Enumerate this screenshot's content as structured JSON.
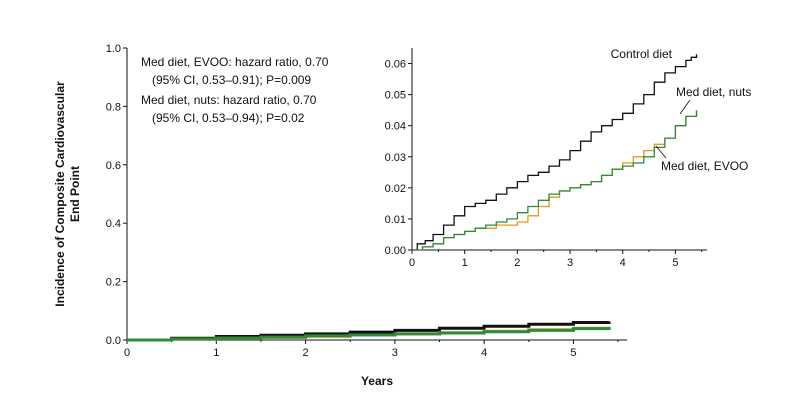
{
  "chart_data": [
    {
      "type": "line",
      "panel": "main",
      "xlabel": "Years",
      "ylabel_lines": [
        "Incidence of Composite Cardiovascular",
        "End Point"
      ],
      "xlim": [
        0,
        5.6
      ],
      "ylim": [
        0,
        1.0
      ],
      "xticks": [
        "0",
        "1",
        "2",
        "3",
        "4",
        "5"
      ],
      "yticks": [
        "0.0",
        "0.2",
        "0.4",
        "0.6",
        "0.8",
        "1.0"
      ],
      "annotations": [
        "Med diet, EVOO: hazard ratio, 0.70",
        "(95% CI, 0.53–0.91); P=0.009",
        "Med diet, nuts: hazard ratio, 0.70",
        "(95% CI, 0.53–0.94);  P=0.02"
      ],
      "series": [
        {
          "color": "#111111",
          "x": [
            0,
            0.5,
            1.0,
            1.5,
            2.0,
            2.5,
            3.0,
            3.5,
            4.0,
            4.5,
            5.0,
            5.4
          ],
          "y": [
            0,
            0.006,
            0.012,
            0.016,
            0.021,
            0.027,
            0.033,
            0.04,
            0.047,
            0.054,
            0.06,
            0.063
          ]
        },
        {
          "color": "#e8971c",
          "x": [
            0,
            0.5,
            1.0,
            1.5,
            2.0,
            2.5,
            3.0,
            3.5,
            4.0,
            4.5,
            5.0,
            5.4
          ],
          "y": [
            0,
            0.003,
            0.006,
            0.009,
            0.013,
            0.017,
            0.021,
            0.025,
            0.03,
            0.035,
            0.04,
            0.045
          ]
        },
        {
          "color": "#2e8b3c",
          "x": [
            0,
            0.5,
            1.0,
            1.5,
            2.0,
            2.5,
            3.0,
            3.5,
            4.0,
            4.5,
            5.0,
            5.4
          ],
          "y": [
            0,
            0.003,
            0.006,
            0.01,
            0.014,
            0.017,
            0.021,
            0.024,
            0.028,
            0.033,
            0.039,
            0.045
          ]
        }
      ]
    },
    {
      "type": "line",
      "panel": "inset",
      "xlim": [
        0,
        5.6
      ],
      "ylim": [
        0,
        0.065
      ],
      "xticks": [
        "0",
        "1",
        "2",
        "3",
        "4",
        "5"
      ],
      "yticks": [
        "0.00",
        "0.01",
        "0.02",
        "0.03",
        "0.04",
        "0.05",
        "0.06"
      ],
      "series": [
        {
          "name": "Control diet",
          "color": "#111111",
          "x": [
            0,
            0.1,
            0.25,
            0.4,
            0.6,
            0.8,
            1.0,
            1.2,
            1.4,
            1.6,
            1.8,
            2.0,
            2.2,
            2.4,
            2.6,
            2.8,
            3.0,
            3.2,
            3.4,
            3.6,
            3.8,
            4.0,
            4.2,
            4.4,
            4.6,
            4.8,
            5.0,
            5.2,
            5.3,
            5.4
          ],
          "y": [
            0,
            0.002,
            0.003,
            0.005,
            0.008,
            0.011,
            0.014,
            0.015,
            0.016,
            0.018,
            0.02,
            0.022,
            0.024,
            0.025,
            0.027,
            0.029,
            0.032,
            0.035,
            0.038,
            0.04,
            0.042,
            0.044,
            0.047,
            0.05,
            0.054,
            0.057,
            0.059,
            0.061,
            0.062,
            0.063
          ]
        },
        {
          "name": "Med diet, nuts",
          "color": "#e8971c",
          "x": [
            0,
            0.2,
            0.4,
            0.6,
            0.8,
            1.0,
            1.2,
            1.4,
            1.6,
            1.8,
            2.0,
            2.2,
            2.4,
            2.6,
            2.8,
            3.0,
            3.2,
            3.4,
            3.6,
            3.8,
            4.0,
            4.2,
            4.4,
            4.6,
            4.8,
            5.0,
            5.2,
            5.4
          ],
          "y": [
            0,
            0.001,
            0.002,
            0.004,
            0.005,
            0.006,
            0.007,
            0.007,
            0.008,
            0.008,
            0.009,
            0.011,
            0.014,
            0.017,
            0.019,
            0.02,
            0.021,
            0.022,
            0.024,
            0.026,
            0.028,
            0.03,
            0.032,
            0.034,
            0.036,
            0.04,
            0.043,
            0.045
          ]
        },
        {
          "name": "Med diet, EVOO",
          "color": "#2e8b3c",
          "x": [
            0,
            0.2,
            0.4,
            0.6,
            0.8,
            1.0,
            1.2,
            1.4,
            1.6,
            1.8,
            2.0,
            2.2,
            2.4,
            2.6,
            2.8,
            3.0,
            3.2,
            3.4,
            3.6,
            3.8,
            4.0,
            4.2,
            4.4,
            4.6,
            4.8,
            5.0,
            5.2,
            5.4
          ],
          "y": [
            0,
            0.001,
            0.002,
            0.004,
            0.005,
            0.006,
            0.007,
            0.008,
            0.009,
            0.01,
            0.012,
            0.014,
            0.016,
            0.018,
            0.019,
            0.02,
            0.021,
            0.022,
            0.024,
            0.026,
            0.027,
            0.028,
            0.03,
            0.033,
            0.036,
            0.04,
            0.043,
            0.045
          ]
        }
      ]
    }
  ]
}
